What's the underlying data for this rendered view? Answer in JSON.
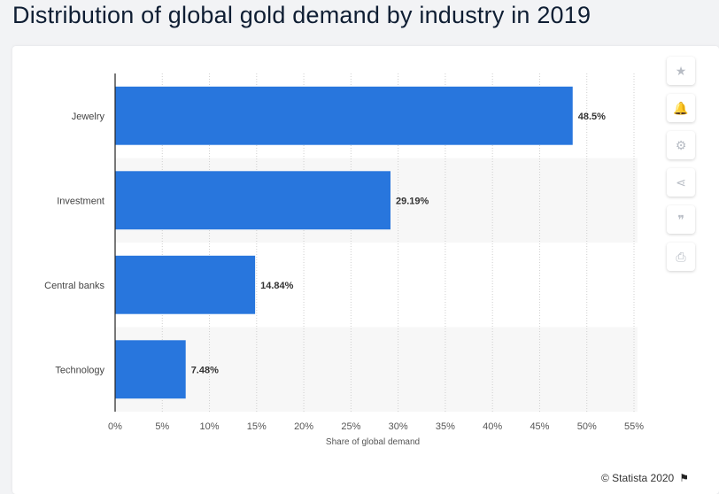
{
  "page": {
    "title": "Distribution of global gold demand by industry in 2019"
  },
  "toolbar": {
    "buttons": [
      {
        "name": "favorite",
        "icon": "star-icon",
        "glyph": "★"
      },
      {
        "name": "notify",
        "icon": "bell-icon",
        "glyph": "🔔"
      },
      {
        "name": "settings",
        "icon": "gear-icon",
        "glyph": "⚙"
      },
      {
        "name": "share",
        "icon": "share-icon",
        "glyph": "⋖"
      },
      {
        "name": "cite",
        "icon": "quote-icon",
        "glyph": "❞"
      },
      {
        "name": "print",
        "icon": "print-icon",
        "glyph": "⎙"
      }
    ]
  },
  "footer": {
    "copyright": "© Statista 2020",
    "icon": "flag-icon"
  },
  "colors": {
    "bar": "#2876dd",
    "band": "#f7f7f7",
    "grid": "#cfcfcf",
    "axis": "#222222"
  },
  "chart_data": {
    "type": "bar",
    "orientation": "horizontal",
    "categories": [
      "Jewelry",
      "Investment",
      "Central banks",
      "Technology"
    ],
    "values": [
      48.5,
      29.19,
      14.84,
      7.48
    ],
    "value_labels": [
      "48.5%",
      "29.19%",
      "14.84%",
      "7.48%"
    ],
    "xlabel": "Share of global demand",
    "ylabel": "",
    "xlim": [
      0,
      55
    ],
    "xticks": [
      0,
      5,
      10,
      15,
      20,
      25,
      30,
      35,
      40,
      45,
      50,
      55
    ],
    "tick_suffix": "%",
    "grid": true,
    "grid_style": "dotted-vertical"
  }
}
